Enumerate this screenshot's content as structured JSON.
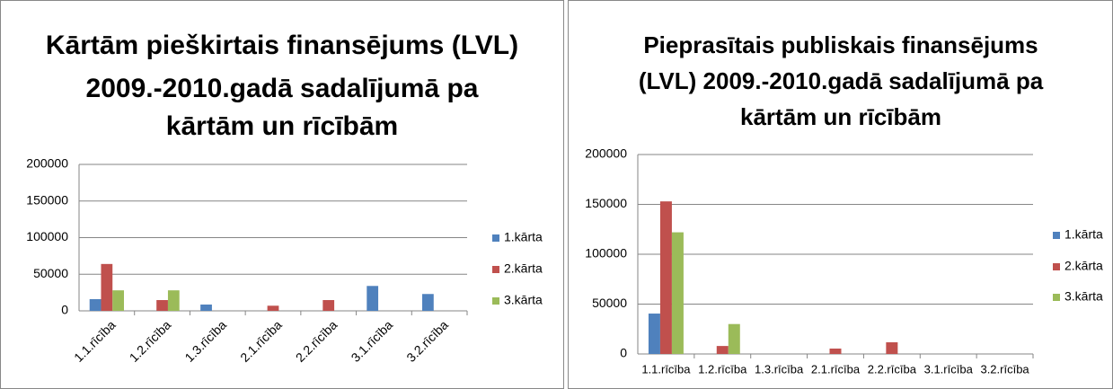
{
  "chart_data": [
    {
      "type": "bar",
      "title": [
        "Kārtām pieškirtais finansējums (LVL)",
        "2009.-2010.gadā sadalījumā pa",
        "kārtām un rīcībām"
      ],
      "categories": [
        "1.1.rīcība",
        "1.2.rīcība",
        "1.3.rīcība",
        "2.1.rīcība",
        "2.2.rīcība",
        "3.1.rīcība",
        "3.2.rīcība"
      ],
      "series": [
        {
          "name": "1.kārta",
          "color": "#4f81bd",
          "values": [
            16000,
            0,
            8600,
            0,
            0,
            34000,
            23000
          ]
        },
        {
          "name": "2.kārta",
          "color": "#c0504d",
          "values": [
            64000,
            14700,
            0,
            7000,
            14700,
            0,
            0
          ]
        },
        {
          "name": "3.kārta",
          "color": "#9bbb59",
          "values": [
            28000,
            28000,
            0,
            0,
            0,
            0,
            0
          ]
        }
      ],
      "ylim": [
        0,
        200000
      ],
      "yticks": [
        0,
        50000,
        100000,
        150000,
        200000
      ],
      "grid": true,
      "legend": "right"
    },
    {
      "type": "bar",
      "title": [
        "Pieprasītais publiskais finansējums",
        "(LVL) 2009.-2010.gadā sadalījumā pa",
        "kārtām un rīcībām"
      ],
      "categories": [
        "1.1.rīcība",
        "1.2.rīcība",
        "1.3.rīcība",
        "2.1.rīcība",
        "2.2.rīcība",
        "3.1.rīcība",
        "3.2.rīcība"
      ],
      "series": [
        {
          "name": "1.kārta",
          "color": "#4f81bd",
          "values": [
            40500,
            0,
            0,
            0,
            0,
            0,
            0
          ]
        },
        {
          "name": "2.kārta",
          "color": "#c0504d",
          "values": [
            153000,
            8000,
            0,
            5400,
            11700,
            0,
            0
          ]
        },
        {
          "name": "3.kārta",
          "color": "#9bbb59",
          "values": [
            122000,
            30000,
            0,
            0,
            0,
            0,
            0
          ]
        }
      ],
      "ylim": [
        0,
        200000
      ],
      "yticks": [
        0,
        50000,
        100000,
        150000,
        200000
      ],
      "grid": true,
      "legend": "right"
    }
  ]
}
